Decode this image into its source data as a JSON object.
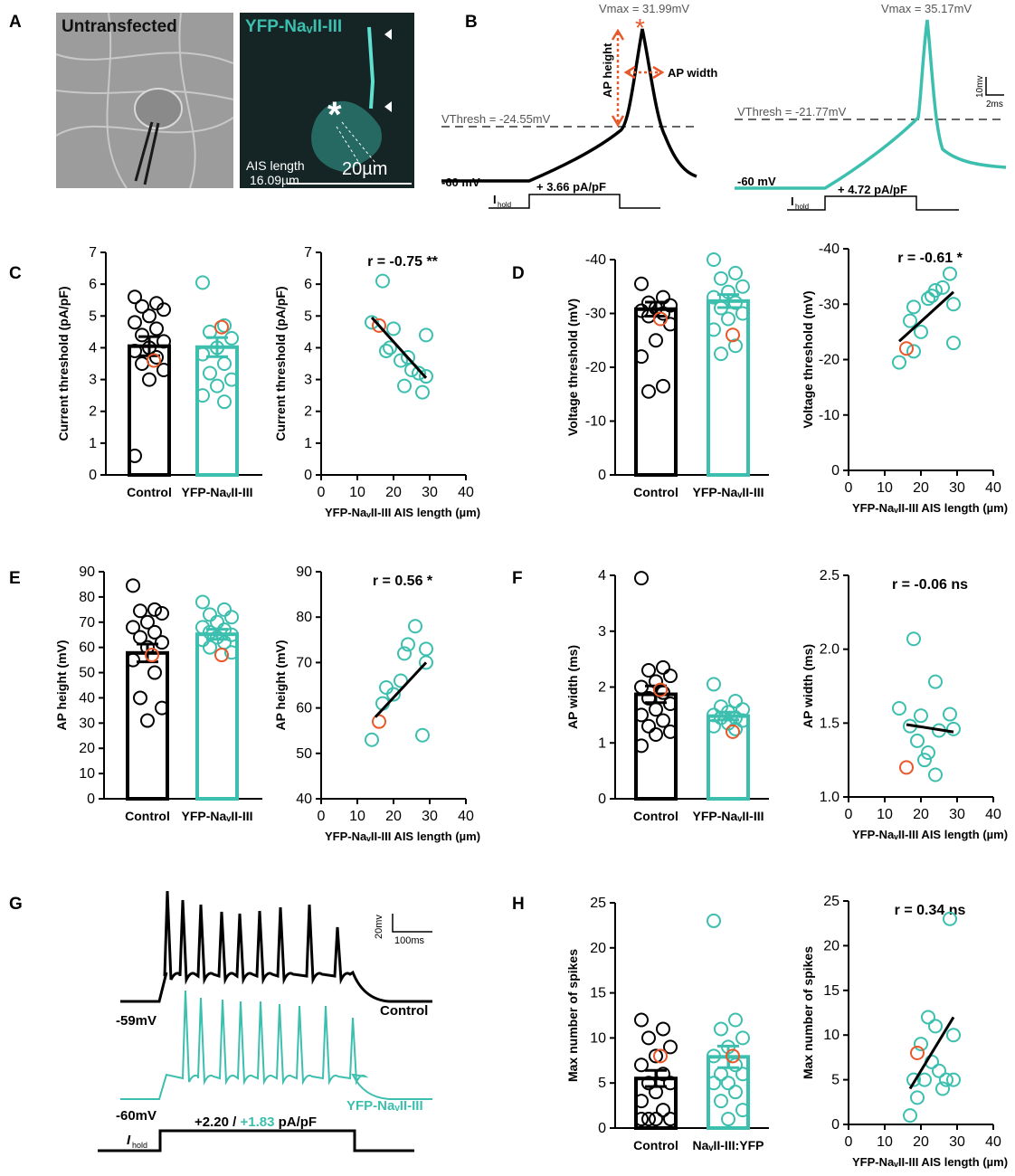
{
  "panel_letters": [
    "A",
    "B",
    "C",
    "D",
    "E",
    "F",
    "G",
    "H"
  ],
  "panel_a": {
    "left_label": "Untransfected",
    "right_label": "YFP-NaᵥII-III",
    "ais_label": "AIS length",
    "ais_value": "16.09µm",
    "scale": "20µm"
  },
  "panel_b": {
    "left": {
      "vmax": "Vmax = 31.99mV",
      "ap_height": "AP height",
      "ap_width": "AP width",
      "vthresh": "VThresh = -24.55mV",
      "rest": "-60 mV",
      "current": "+ 3.66 pA/pF"
    },
    "right": {
      "vmax": "Vmax = 35.17mV",
      "vthresh": "VThresh = -21.77mV",
      "rest": "-60 mV",
      "current": "+ 4.72 pA/pF"
    },
    "ihold": {
      "main": "I",
      "sub": "hold"
    },
    "scale_v": "10mv",
    "scale_t": "2ms"
  },
  "panel_g": {
    "scale_v": "20mv",
    "scale_t": "100ms",
    "control": "Control",
    "control_rest": "-59mV",
    "yfp_rest": "-60mV",
    "yfp": "YFP-NaᵥII-III",
    "current_a": "+2.20 / ",
    "current_b": "+1.83",
    "current_c": " pA/pF",
    "ihold": {
      "main": "I",
      "sub": "hold"
    }
  },
  "chart_data": [
    {
      "type": "bar",
      "ylabel": "Current threshold (pA/pF)",
      "ylim": [
        0,
        7
      ],
      "yticks": [
        0,
        1,
        2,
        3,
        4,
        5,
        6,
        7
      ],
      "highlight_color": "#e8582a",
      "groups": [
        {
          "name": "Control",
          "color": "#000000",
          "value": 4.05,
          "error": 0.3,
          "highlight": 3.6,
          "points": [
            5.6,
            5.4,
            5.3,
            5.2,
            5.0,
            4.8,
            4.6,
            4.4,
            4.2,
            4.0,
            3.9,
            3.7,
            3.5,
            3.3,
            3.0,
            0.6
          ]
        },
        {
          "name": "YFP-NaᵥII-III",
          "color": "#3cbfae",
          "value": 4.02,
          "error": 0.3,
          "highlight": 4.65,
          "points": [
            6.05,
            4.7,
            4.5,
            4.3,
            4.0,
            3.8,
            3.5,
            3.2,
            3.0,
            2.8,
            2.5,
            2.3
          ]
        }
      ]
    },
    {
      "type": "scatter",
      "annotation": "r = -0.75 **",
      "xlabel": "YFP-NaᵥII-III AIS length (µm)",
      "ylabel": "Current threshold (pA/pF)",
      "xlim": [
        0,
        40
      ],
      "xticks": [
        0,
        10,
        20,
        30,
        40
      ],
      "ylim": [
        0,
        7
      ],
      "yticks": [
        0,
        1,
        2,
        3,
        4,
        5,
        6,
        7
      ],
      "color": "#3cbfae",
      "highlight_color": "#e8582a",
      "x": [
        14,
        17,
        18,
        19,
        20,
        22,
        23,
        24,
        25,
        27,
        28,
        29,
        29
      ],
      "y": [
        4.8,
        6.1,
        3.9,
        4.0,
        4.6,
        3.6,
        2.8,
        3.7,
        3.3,
        3.2,
        2.6,
        4.4,
        3.1
      ],
      "highlight": {
        "x": 16,
        "y": 4.7
      },
      "fit": {
        "x": [
          14,
          29
        ],
        "y": [
          4.95,
          3.05
        ],
        "color": "#000000"
      }
    },
    {
      "type": "bar",
      "ylabel": "Voltage threshold (mV)",
      "ylim": [
        0,
        -40
      ],
      "yticks": [
        0,
        -10,
        -20,
        -30,
        -40
      ],
      "highlight_color": "#e8582a",
      "groups": [
        {
          "name": "Control",
          "color": "#000000",
          "value": -30.8,
          "error": 1.3,
          "highlight": -29,
          "points": [
            -35.5,
            -33,
            -32,
            -31.5,
            -31,
            -30.5,
            -30,
            -29.5,
            -28,
            -25,
            -22,
            -16.5,
            -15.5
          ]
        },
        {
          "name": "YFP-NaᵥII-III",
          "color": "#3cbfae",
          "value": -32.3,
          "error": 1.2,
          "highlight": -26,
          "points": [
            -40,
            -37.5,
            -36.5,
            -35,
            -34,
            -33,
            -32,
            -31,
            -30,
            -29,
            -27,
            -24,
            -22.5
          ]
        }
      ]
    },
    {
      "type": "scatter",
      "annotation": "r = -0.61 *",
      "xlabel": "YFP-NaᵥII-III AIS length (µm)",
      "ylabel": "Voltage threshold (mV)",
      "xlim": [
        0,
        40
      ],
      "xticks": [
        0,
        10,
        20,
        30,
        40
      ],
      "ylim": [
        0,
        -40
      ],
      "yticks": [
        0,
        -10,
        -20,
        -30,
        -40
      ],
      "color": "#3cbfae",
      "highlight_color": "#e8582a",
      "x": [
        14,
        17,
        18,
        18,
        20,
        22,
        23,
        24,
        26,
        28,
        29,
        29
      ],
      "y": [
        -19.5,
        -27,
        -29.5,
        -21.5,
        -25,
        -31,
        -31.5,
        -32.5,
        -33,
        -35.5,
        -30,
        -23
      ],
      "highlight": {
        "x": 16,
        "y": -22
      },
      "fit": {
        "x": [
          14,
          29
        ],
        "y": [
          -23.3,
          -32.2
        ],
        "color": "#000000"
      }
    },
    {
      "type": "bar",
      "ylabel": "AP height (mV)",
      "ylim": [
        0,
        90
      ],
      "yticks": [
        0,
        10,
        20,
        30,
        40,
        50,
        60,
        70,
        80,
        90
      ],
      "highlight_color": "#e8582a",
      "groups": [
        {
          "name": "Control",
          "color": "#000000",
          "value": 57.8,
          "error": 3.5,
          "highlight": 57,
          "points": [
            84.5,
            75,
            74.5,
            73.5,
            70,
            68,
            66,
            64,
            62,
            60,
            55,
            50,
            40,
            36,
            31
          ]
        },
        {
          "name": "YFP-NaᵥII-III",
          "color": "#3cbfae",
          "value": 65.2,
          "error": 2,
          "highlight": 57,
          "points": [
            78,
            75,
            73,
            72,
            70,
            68,
            67,
            66,
            65,
            64,
            63,
            62,
            60,
            58
          ]
        }
      ]
    },
    {
      "type": "scatter",
      "annotation": "r = 0.56 *",
      "xlabel": "YFP-NaᵥII-III AIS length (µm)",
      "ylabel": "AP height (mV)",
      "xlim": [
        0,
        40
      ],
      "xticks": [
        0,
        10,
        20,
        30,
        40
      ],
      "ylim": [
        40,
        90
      ],
      "yticks": [
        40,
        50,
        60,
        70,
        80,
        90
      ],
      "color": "#3cbfae",
      "highlight_color": "#e8582a",
      "x": [
        14,
        17,
        18,
        20,
        22,
        23,
        24,
        26,
        28,
        29,
        29
      ],
      "y": [
        53,
        61,
        64.5,
        63,
        66,
        72,
        74,
        78,
        54,
        73,
        70
      ],
      "highlight": {
        "x": 16,
        "y": 57
      },
      "fit": {
        "x": [
          15,
          29
        ],
        "y": [
          58,
          70
        ],
        "color": "#000000"
      }
    },
    {
      "type": "bar",
      "ylabel": "AP width (ms)",
      "ylim": [
        0,
        4
      ],
      "yticks": [
        0,
        1,
        2,
        3,
        4
      ],
      "highlight_color": "#e8582a",
      "groups": [
        {
          "name": "Control",
          "color": "#000000",
          "value": 1.87,
          "error": 0.15,
          "highlight": 1.95,
          "points": [
            3.95,
            2.35,
            2.3,
            2.2,
            2.1,
            2.0,
            1.9,
            1.8,
            1.7,
            1.6,
            1.5,
            1.4,
            1.3,
            1.2,
            1.15,
            0.95
          ]
        },
        {
          "name": "YFP-NaᵥII-III",
          "color": "#3cbfae",
          "value": 1.48,
          "error": 0.07,
          "highlight": 1.2,
          "points": [
            2.05,
            1.75,
            1.65,
            1.6,
            1.55,
            1.5,
            1.45,
            1.45,
            1.4,
            1.35,
            1.3,
            1.25
          ]
        }
      ]
    },
    {
      "type": "scatter",
      "annotation": "r = -0.06 ns",
      "xlabel": "YFP-NaᵥII-III AIS length (µm)",
      "ylabel": "AP width (ms)",
      "xlim": [
        0,
        40
      ],
      "xticks": [
        0,
        10,
        20,
        30,
        40
      ],
      "ylim": [
        1,
        2.5
      ],
      "yticks": [
        {
          "value": 1,
          "label": "1.0"
        },
        1.5,
        {
          "value": 2,
          "label": "2.0"
        },
        2.5
      ],
      "color": "#3cbfae",
      "highlight_color": "#e8582a",
      "x": [
        14,
        17,
        18,
        19,
        20,
        21,
        22,
        24,
        24,
        25,
        28,
        29
      ],
      "y": [
        1.6,
        1.48,
        2.07,
        1.38,
        1.55,
        1.25,
        1.3,
        1.78,
        1.15,
        1.45,
        1.56,
        1.46
      ],
      "highlight": {
        "x": 16,
        "y": 1.2
      },
      "fit": {
        "x": [
          16,
          29
        ],
        "y": [
          1.49,
          1.44
        ],
        "color": "#000000"
      }
    },
    {
      "type": "bar",
      "ylabel": "Max number of spikes",
      "ylim": [
        0,
        25
      ],
      "yticks": [
        0,
        5,
        10,
        15,
        20,
        25
      ],
      "highlight_color": "#e8582a",
      "groups": [
        {
          "name": "Control",
          "color": "#000000",
          "value": 5.5,
          "error": 0.9,
          "highlight": 8,
          "points": [
            12,
            11,
            10,
            9,
            8,
            7,
            6,
            5,
            5,
            4,
            3,
            2,
            1,
            1,
            1,
            1
          ]
        },
        {
          "name": "NaᵥII-III:YFP",
          "color": "#3cbfae",
          "value": 7.9,
          "error": 1.2,
          "highlight": 8,
          "points": [
            23,
            12,
            11,
            10,
            9,
            8,
            7,
            6,
            6,
            5,
            5,
            4,
            3,
            2,
            1
          ]
        }
      ]
    },
    {
      "type": "scatter",
      "annotation": "r = 0.34 ns",
      "xlabel": "YFP-NaᵥII-III AIS length (µm)",
      "ylabel": "Max number of spikes",
      "xlim": [
        0,
        40
      ],
      "xticks": [
        0,
        10,
        20,
        30,
        40
      ],
      "ylim": [
        0,
        25
      ],
      "yticks": [
        0,
        5,
        10,
        15,
        20,
        25
      ],
      "color": "#3cbfae",
      "highlight_color": "#e8582a",
      "x": [
        17,
        18,
        19,
        20,
        21,
        22,
        23,
        24,
        25,
        26,
        27,
        28,
        29,
        29
      ],
      "y": [
        1,
        5,
        3,
        9,
        5,
        12,
        7,
        11,
        6,
        4,
        5,
        23,
        10,
        5
      ],
      "highlight": {
        "x": 19,
        "y": 8
      },
      "fit": {
        "x": [
          17,
          29
        ],
        "y": [
          4,
          12
        ],
        "color": "#000000"
      }
    }
  ]
}
